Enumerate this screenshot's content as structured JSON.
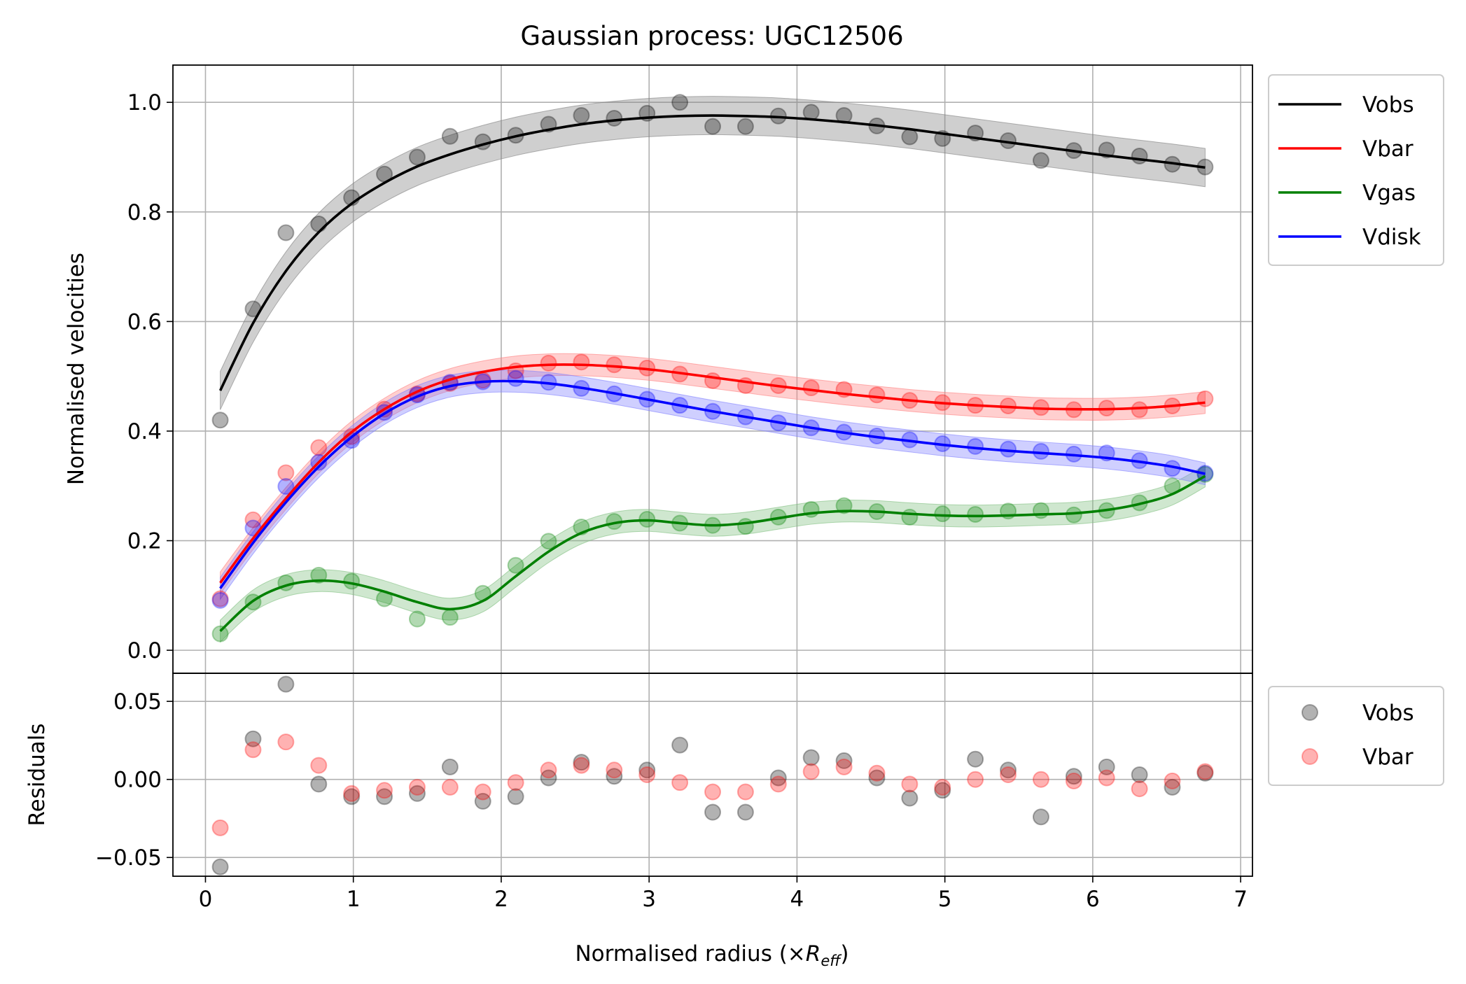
{
  "chart_data": [
    {
      "type": "line",
      "title": "Gaussian process: UGC12506",
      "xlabel": "",
      "ylabel": "Normalised velocities",
      "xlim": [
        -0.22,
        7.08
      ],
      "ylim": [
        -0.042,
        1.068
      ],
      "x_ticks": [
        "0",
        "1",
        "2",
        "3",
        "4",
        "5",
        "6",
        "7"
      ],
      "y_ticks": [
        "0.0",
        "0.2",
        "0.4",
        "0.6",
        "0.8",
        "1.0"
      ],
      "grid": true,
      "legend_position": "outside-right-top",
      "x": [
        0.1,
        0.322,
        0.544,
        0.766,
        0.988,
        1.21,
        1.432,
        1.654,
        1.876,
        2.098,
        2.32,
        2.542,
        2.764,
        2.986,
        3.208,
        3.43,
        3.652,
        3.874,
        4.096,
        4.318,
        4.54,
        4.762,
        4.984,
        5.206,
        5.428,
        5.65,
        5.872,
        6.094,
        6.316,
        6.538,
        6.76
      ],
      "series": [
        {
          "name": "Vobs",
          "color": "#000000",
          "band_color": "#808080",
          "points": [
            0.42,
            0.623,
            0.762,
            0.778,
            0.826,
            0.869,
            0.9,
            0.938,
            0.928,
            0.94,
            0.96,
            0.976,
            0.971,
            0.98,
            1.0,
            0.956,
            0.956,
            0.975,
            0.982,
            0.976,
            0.957,
            0.937,
            0.934,
            0.944,
            0.93,
            0.894,
            0.912,
            0.913,
            0.902,
            0.887,
            0.882
          ],
          "fit": [
            0.474,
            0.597,
            0.692,
            0.763,
            0.815,
            0.853,
            0.883,
            0.905,
            0.923,
            0.938,
            0.95,
            0.96,
            0.967,
            0.972,
            0.975,
            0.976,
            0.975,
            0.973,
            0.969,
            0.964,
            0.958,
            0.951,
            0.943,
            0.935,
            0.927,
            0.919,
            0.911,
            0.903,
            0.896,
            0.889,
            0.881
          ]
        },
        {
          "name": "Vbar",
          "color": "#ff0000",
          "band_color": "#ff8080",
          "points": [
            0.094,
            0.238,
            0.324,
            0.37,
            0.39,
            0.44,
            0.468,
            0.487,
            0.493,
            0.51,
            0.524,
            0.526,
            0.521,
            0.515,
            0.504,
            0.492,
            0.483,
            0.483,
            0.479,
            0.476,
            0.466,
            0.456,
            0.452,
            0.447,
            0.446,
            0.443,
            0.439,
            0.442,
            0.439,
            0.446,
            0.459
          ],
          "fit": [
            0.123,
            0.204,
            0.277,
            0.343,
            0.398,
            0.44,
            0.472,
            0.494,
            0.508,
            0.517,
            0.521,
            0.521,
            0.518,
            0.513,
            0.506,
            0.498,
            0.49,
            0.482,
            0.475,
            0.468,
            0.462,
            0.456,
            0.451,
            0.447,
            0.444,
            0.441,
            0.44,
            0.44,
            0.442,
            0.446,
            0.452
          ]
        },
        {
          "name": "Vgas",
          "color": "#008000",
          "band_color": "#80c080",
          "points": [
            0.03,
            0.088,
            0.123,
            0.137,
            0.126,
            0.094,
            0.057,
            0.06,
            0.104,
            0.155,
            0.199,
            0.225,
            0.235,
            0.239,
            0.232,
            0.228,
            0.226,
            0.243,
            0.257,
            0.264,
            0.253,
            0.243,
            0.249,
            0.248,
            0.254,
            0.255,
            0.247,
            0.255,
            0.269,
            0.3,
            0.321
          ],
          "fit": [
            0.035,
            0.09,
            0.118,
            0.127,
            0.122,
            0.107,
            0.088,
            0.075,
            0.09,
            0.135,
            0.18,
            0.214,
            0.232,
            0.237,
            0.232,
            0.228,
            0.232,
            0.241,
            0.25,
            0.254,
            0.253,
            0.249,
            0.246,
            0.245,
            0.246,
            0.248,
            0.25,
            0.256,
            0.267,
            0.285,
            0.318
          ]
        },
        {
          "name": "Vdisk",
          "color": "#0000ff",
          "band_color": "#8080ff",
          "points": [
            0.091,
            0.223,
            0.299,
            0.343,
            0.383,
            0.434,
            0.466,
            0.489,
            0.49,
            0.496,
            0.489,
            0.478,
            0.468,
            0.458,
            0.447,
            0.436,
            0.426,
            0.415,
            0.406,
            0.398,
            0.391,
            0.384,
            0.377,
            0.372,
            0.367,
            0.363,
            0.358,
            0.36,
            0.346,
            0.332,
            0.323
          ],
          "fit": [
            0.113,
            0.196,
            0.27,
            0.335,
            0.389,
            0.432,
            0.463,
            0.482,
            0.49,
            0.491,
            0.487,
            0.479,
            0.469,
            0.458,
            0.447,
            0.436,
            0.426,
            0.416,
            0.406,
            0.397,
            0.389,
            0.382,
            0.375,
            0.369,
            0.364,
            0.36,
            0.356,
            0.351,
            0.344,
            0.335,
            0.322
          ]
        }
      ],
      "band_halfwidth": 0.02,
      "band_halfwidth_vobs": 0.035
    },
    {
      "type": "scatter",
      "title": "",
      "xlabel": "Normalised radius (×R_eff)",
      "ylabel": "Residuals",
      "xlim": [
        -0.22,
        7.08
      ],
      "ylim": [
        -0.062,
        0.068
      ],
      "x_ticks": [
        "0",
        "1",
        "2",
        "3",
        "4",
        "5",
        "6",
        "7"
      ],
      "y_ticks": [
        "−0.05",
        "0.00",
        "0.05"
      ],
      "grid": true,
      "legend_position": "outside-right-top",
      "x": [
        0.1,
        0.322,
        0.544,
        0.766,
        0.988,
        1.21,
        1.432,
        1.654,
        1.876,
        2.098,
        2.32,
        2.542,
        2.764,
        2.986,
        3.208,
        3.43,
        3.652,
        3.874,
        4.096,
        4.318,
        4.54,
        4.762,
        4.984,
        5.206,
        5.428,
        5.65,
        5.872,
        6.094,
        6.316,
        6.538,
        6.76
      ],
      "series": [
        {
          "name": "Vobs",
          "color": "#000000",
          "values": [
            -0.056,
            0.026,
            0.061,
            -0.003,
            -0.011,
            -0.011,
            -0.009,
            0.008,
            -0.014,
            -0.011,
            0.001,
            0.011,
            0.002,
            0.006,
            0.022,
            -0.021,
            -0.021,
            0.001,
            0.014,
            0.012,
            0.001,
            -0.012,
            -0.007,
            0.013,
            0.006,
            -0.024,
            0.002,
            0.008,
            0.003,
            -0.005,
            0.004
          ]
        },
        {
          "name": "Vbar",
          "color": "#ff0000",
          "values": [
            -0.031,
            0.019,
            0.024,
            0.009,
            -0.009,
            -0.007,
            -0.005,
            -0.005,
            -0.008,
            -0.002,
            0.006,
            0.009,
            0.006,
            0.003,
            -0.002,
            -0.008,
            -0.008,
            -0.003,
            0.005,
            0.008,
            0.004,
            -0.003,
            -0.005,
            0.0,
            0.003,
            0.0,
            -0.001,
            0.001,
            -0.006,
            -0.001,
            0.005
          ]
        }
      ]
    }
  ]
}
